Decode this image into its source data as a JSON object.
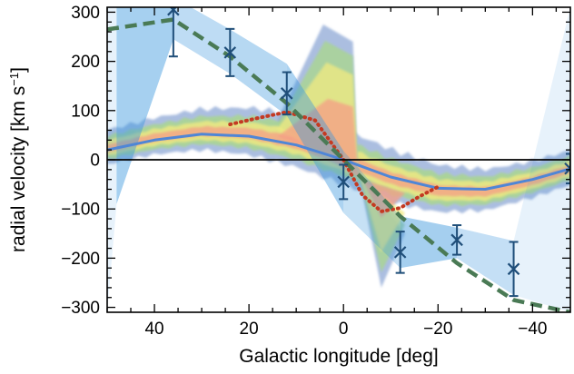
{
  "chart_data": {
    "type": "scatter",
    "title": "",
    "xlabel": "Galactic longitude [deg]",
    "ylabel_main": "radial velocity [km s",
    "ylabel_sup": "−1",
    "ylabel_close": "]",
    "xlim": [
      50,
      -48
    ],
    "ylim": [
      -310,
      310
    ],
    "x_axis_reversed": true,
    "grid": false,
    "legend": "none",
    "x_ticks": [
      40,
      20,
      0,
      -20,
      -40
    ],
    "x_tick_labels": [
      "40",
      "20",
      "0",
      "−20",
      "−40"
    ],
    "y_ticks": [
      -300,
      -200,
      -100,
      0,
      100,
      200,
      300
    ],
    "y_tick_labels": [
      "−300",
      "−200",
      "−100",
      "0",
      "100",
      "200",
      "300"
    ],
    "zero_line_y": 0,
    "colors": {
      "band": "#3a96dd",
      "markers": "#1f4e79",
      "dashed": "#4a7a55",
      "dotted": "#c43a22",
      "solid": "#4f86d6",
      "contour_blue": "#8fa8d6",
      "contour_green": "#a9d78b",
      "contour_yellow": "#f1ea80",
      "contour_red": "#f59d86"
    },
    "series": [
      {
        "kind": "measurements_with_errorbars",
        "x": [
          36,
          24,
          12,
          0,
          -12,
          -24,
          -36,
          -48
        ],
        "y": [
          305,
          218,
          135,
          -45,
          -188,
          -163,
          -222,
          -18
        ],
        "yerr": [
          95,
          48,
          43,
          35,
          42,
          30,
          55,
          30
        ]
      },
      {
        "kind": "shaded_band",
        "x": [
          50,
          48,
          36,
          24,
          12,
          0,
          -12,
          -24,
          -36,
          -48
        ],
        "upper": [
          360,
          360,
          330,
          265,
          195,
          18,
          -115,
          -138,
          -165,
          310
        ],
        "lower": [
          -310,
          -90,
          245,
          175,
          90,
          -108,
          -220,
          -200,
          -275,
          -310
        ]
      },
      {
        "kind": "dashed_line",
        "x": [
          50,
          36,
          24,
          12,
          0,
          -12,
          -24,
          -36,
          -48
        ],
        "y": [
          265,
          285,
          210,
          115,
          0,
          -115,
          -210,
          -285,
          -310
        ]
      },
      {
        "kind": "dotted_line",
        "x": [
          24,
          18,
          12,
          6,
          0,
          -4,
          -8,
          -12,
          -16,
          -20
        ],
        "y": [
          72,
          85,
          97,
          80,
          0,
          -72,
          -105,
          -98,
          -75,
          -55
        ]
      },
      {
        "kind": "solid_line",
        "x": [
          50,
          40,
          30,
          20,
          10,
          0,
          -10,
          -20,
          -30,
          -40,
          -48
        ],
        "y": [
          20,
          40,
          52,
          48,
          30,
          0,
          -35,
          -58,
          -60,
          -40,
          -18
        ]
      }
    ]
  }
}
